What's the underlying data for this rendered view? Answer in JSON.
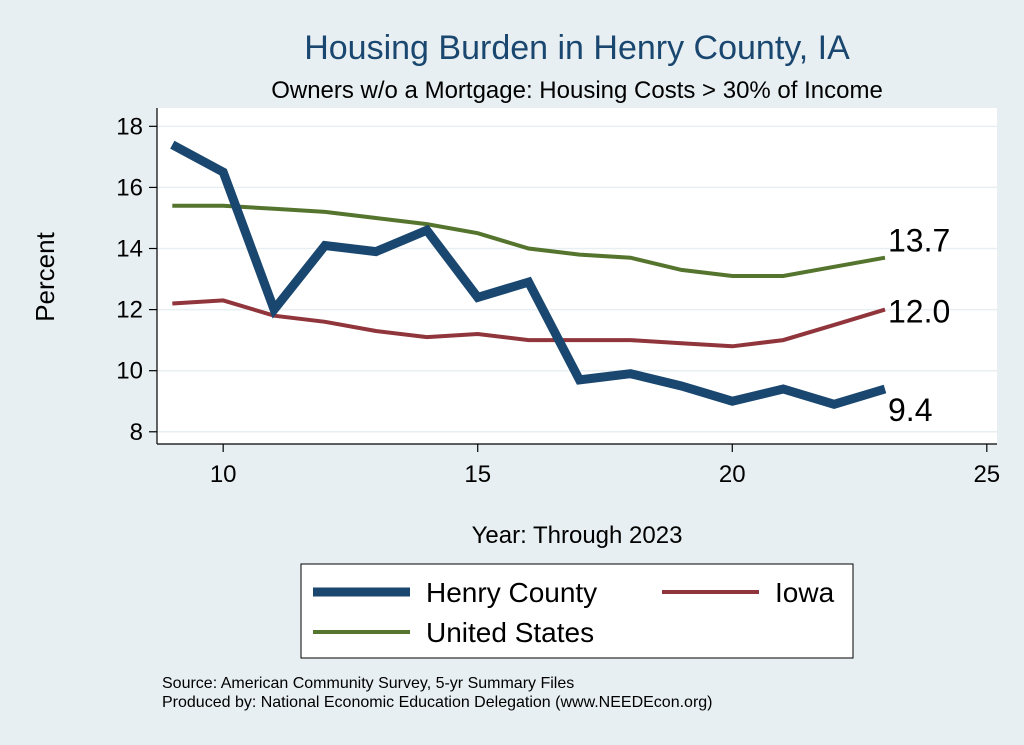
{
  "chart_data": {
    "type": "line",
    "title": "Housing Burden in Henry County, IA",
    "subtitle": "Owners w/o a Mortgage: Housing Costs > 30% of Income",
    "xlabel": "Year: Through 2023",
    "ylabel": "Percent",
    "xlim": [
      8.7,
      25.2
    ],
    "ylim": [
      7.6,
      18.6
    ],
    "xticks": [
      10,
      15,
      20,
      25
    ],
    "yticks": [
      8,
      10,
      12,
      14,
      16,
      18
    ],
    "grid": true,
    "legend_position": "bottom",
    "x": [
      9,
      10,
      11,
      12,
      13,
      14,
      15,
      16,
      17,
      18,
      19,
      20,
      21,
      22,
      23
    ],
    "series": [
      {
        "name": "Henry County",
        "color": "#1a476f",
        "values": [
          17.4,
          16.5,
          12.0,
          14.1,
          13.9,
          14.6,
          12.4,
          12.9,
          9.7,
          9.9,
          9.5,
          9.0,
          9.4,
          8.9,
          9.4
        ],
        "end_label": "9.4"
      },
      {
        "name": "Iowa",
        "color": "#90353b",
        "values": [
          12.2,
          12.3,
          11.8,
          11.6,
          11.3,
          11.1,
          11.2,
          11.0,
          11.0,
          11.0,
          10.9,
          10.8,
          11.0,
          11.5,
          12.0
        ],
        "end_label": "12.0"
      },
      {
        "name": "United States",
        "color": "#55752f",
        "values": [
          15.4,
          15.4,
          15.3,
          15.2,
          15.0,
          14.8,
          14.5,
          14.0,
          13.8,
          13.7,
          13.3,
          13.1,
          13.1,
          13.4,
          13.7
        ],
        "end_label": "13.7"
      }
    ]
  },
  "footer": {
    "source": "Source: American Community Survey, 5-yr Summary Files",
    "produced_by": "Produced by: National Economic Education Delegation (www.NEEDEcon.org)"
  },
  "colors": {
    "page_background": "#e8eff2",
    "plot_background": "#ffffff",
    "title": "#1a476f",
    "grid": "#e8eff2"
  }
}
